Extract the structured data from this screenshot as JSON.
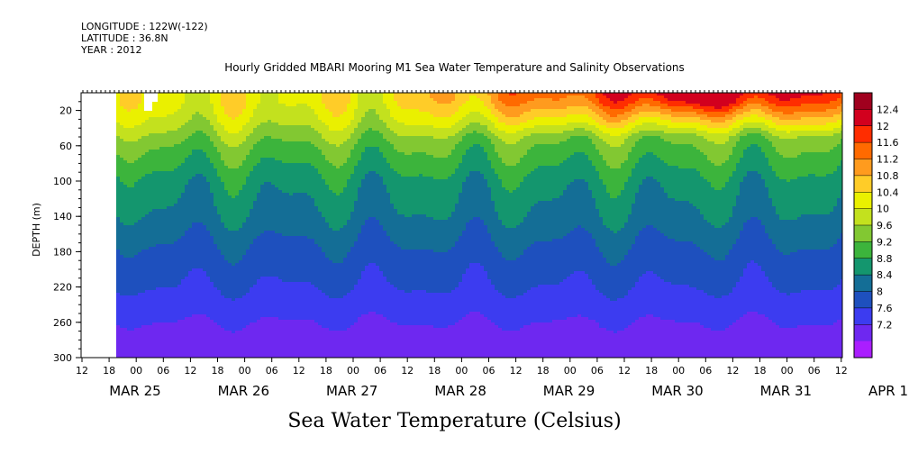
{
  "header": {
    "longitude": "LONGITUDE : 122W(-122)",
    "latitude": "LATITUDE : 36.8N",
    "year": "YEAR : 2012"
  },
  "chart_data": {
    "type": "heatmap",
    "title": "Hourly Gridded MBARI Mooring M1 Sea Water Temperature and Salinity Observations",
    "subtitle": "Sea Water Temperature (Celsius)",
    "ylabel": "DEPTH (m)",
    "ylim": [
      300,
      0
    ],
    "yticks": [
      20,
      60,
      100,
      140,
      180,
      220,
      260,
      300
    ],
    "x_hour_ticks": [
      "12",
      "18",
      "00",
      "06",
      "12",
      "18",
      "00",
      "06",
      "12",
      "18",
      "00",
      "06",
      "12",
      "18",
      "00",
      "06",
      "12",
      "18",
      "00",
      "06",
      "12",
      "18",
      "00",
      "06",
      "12",
      "18",
      "00",
      "06",
      "12"
    ],
    "x_date_labels": [
      "MAR 25",
      "MAR 26",
      "MAR 27",
      "MAR 28",
      "MAR 29",
      "MAR 30",
      "MAR 31",
      "APR  1"
    ],
    "colorbar": {
      "levels": [
        "12.4",
        "12",
        "11.6",
        "11.2",
        "10.8",
        "10.4",
        "10",
        "9.6",
        "9.2",
        "8.8",
        "8.4",
        "8",
        "7.6",
        "7.2"
      ],
      "colors": [
        "#a0001e",
        "#d2001e",
        "#ff2d00",
        "#ff6a00",
        "#ff9b1e",
        "#ffcc28",
        "#eaf000",
        "#c3e11e",
        "#82c832",
        "#3cb43c",
        "#14966e",
        "#146e96",
        "#1e50be",
        "#3c3cf0",
        "#6e28f0",
        "#aa1eff"
      ]
    },
    "data_start": "MAR 25 18:00",
    "depth_profile_start": [
      {
        "depth": 10,
        "temp": 10.6
      },
      {
        "depth": 30,
        "temp": 10.3
      },
      {
        "depth": 60,
        "temp": 9.6
      },
      {
        "depth": 100,
        "temp": 9.0
      },
      {
        "depth": 140,
        "temp": 8.7
      },
      {
        "depth": 180,
        "temp": 8.3
      },
      {
        "depth": 220,
        "temp": 8.0
      },
      {
        "depth": 260,
        "temp": 7.6
      },
      {
        "depth": 300,
        "temp": 7.3
      }
    ],
    "surface_max": {
      "label": "MAR 31 00-06",
      "temp": 12.4
    },
    "grid": false,
    "legend_placement": "right"
  }
}
